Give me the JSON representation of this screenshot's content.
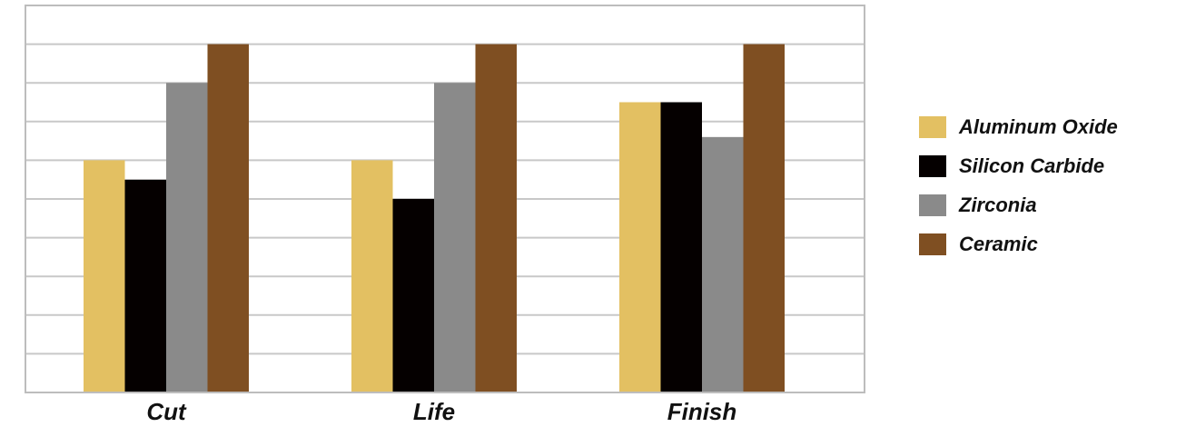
{
  "chart_data": {
    "type": "bar",
    "title": "",
    "xlabel": "",
    "ylabel": "",
    "categories": [
      "Cut",
      "Life",
      "Finish"
    ],
    "series": [
      {
        "name": "Aluminum Oxide",
        "color": "#e3c062",
        "values": [
          6,
          6,
          7.5
        ]
      },
      {
        "name": "Silicon Carbide",
        "color": "#050000",
        "values": [
          5.5,
          5,
          7.5
        ]
      },
      {
        "name": "Zirconia",
        "color": "#8a8a8a",
        "values": [
          8,
          8,
          6.6
        ]
      },
      {
        "name": "Ceramic",
        "color": "#7f4f22",
        "values": [
          9,
          9,
          9
        ]
      }
    ],
    "ylim": [
      0,
      10
    ],
    "grid": true,
    "legend_position": "right",
    "gridline_color": "#c8c8c8"
  }
}
